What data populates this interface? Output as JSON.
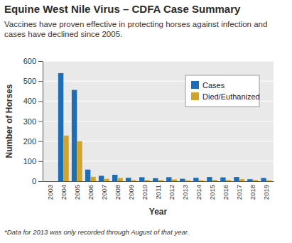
{
  "chart_data": {
    "type": "bar",
    "title": "Equine West Nile Virus – CDFA Case Summary",
    "subtitle": "Vaccines have proven effective in protecting horses against infection and cases have declined since 2005.",
    "x_label": "Year",
    "y_label": "Number of Horses",
    "annotations": [
      "*Data for 2013 was only recorded through August of that year."
    ],
    "categories": [
      "2003",
      "2004",
      "2005",
      "2006",
      "2007",
      "2008",
      "2009",
      "2010",
      "2011",
      "2012",
      "2013",
      "2014",
      "2015",
      "2016",
      "2017",
      "2018",
      "2019"
    ],
    "series": [
      {
        "name": "Cases",
        "color": "#1f6db3",
        "values": [
          0,
          540,
          456,
          58,
          27,
          32,
          17,
          20,
          15,
          20,
          12,
          17,
          21,
          19,
          21,
          10,
          16
        ]
      },
      {
        "name": "Died/Euthanized",
        "color": "#d1a52b",
        "values": [
          0,
          228,
          200,
          22,
          12,
          16,
          5,
          6,
          5,
          9,
          4,
          4,
          6,
          6,
          10,
          6,
          4
        ]
      }
    ],
    "ylim": [
      0,
      600
    ],
    "yticks": [
      0,
      100,
      200,
      300,
      400,
      500,
      600
    ],
    "grid": true,
    "legend": "upper right"
  }
}
